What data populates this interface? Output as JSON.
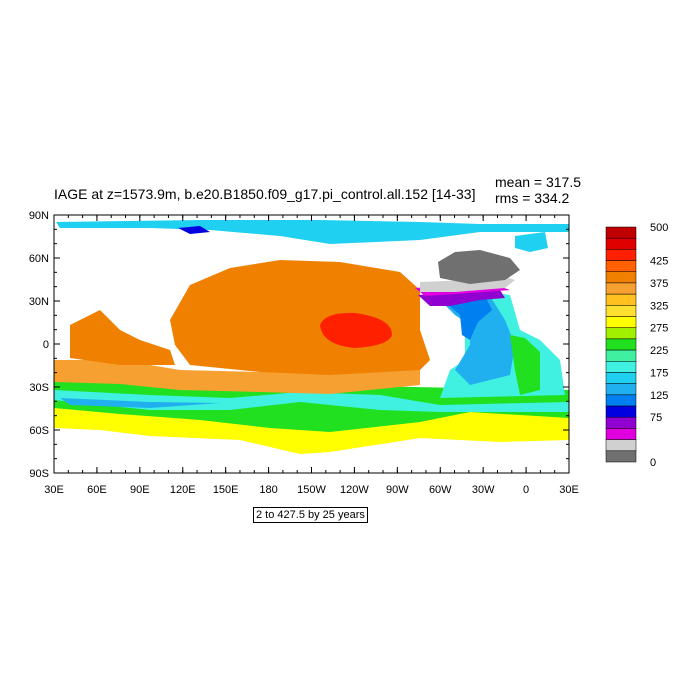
{
  "title": "IAGE at z=1573.9m, b.e20.B1850.f09_g17.pi_control.all.152 [14-33]",
  "stats": {
    "mean": "mean = 317.5",
    "rms": "rms = 334.2"
  },
  "note": "2 to 427.5 by 25 years",
  "axes": {
    "x_ticks": [
      "30E",
      "60E",
      "90E",
      "120E",
      "150E",
      "180",
      "150W",
      "120W",
      "90W",
      "60W",
      "30W",
      "0",
      "30E"
    ],
    "y_ticks": [
      "90N",
      "60N",
      "30N",
      "0",
      "30S",
      "60S",
      "90S"
    ]
  },
  "colorbar": {
    "labels": [
      "500",
      "425",
      "375",
      "325",
      "275",
      "225",
      "175",
      "125",
      "75",
      "0"
    ],
    "colors": [
      "#c00000",
      "#e00000",
      "#ff2000",
      "#ff6000",
      "#f08000",
      "#f5a030",
      "#ffc020",
      "#ffe030",
      "#ffff00",
      "#a0f000",
      "#20e020",
      "#40f0a0",
      "#40f0e0",
      "#20d0f0",
      "#20b0f0",
      "#0080f0",
      "#0000e0",
      "#9000d0",
      "#e000e0",
      "#d0d0d0",
      "#707070"
    ]
  },
  "map_colors": {
    "land": "#ffffff",
    "north_pacific_core": "#ff2000",
    "pacific": "#f08000",
    "pacific_south": "#f5a030",
    "southern_yellow": "#ffff00",
    "southern_green": "#20e020",
    "southern_cyan": "#40f0e0",
    "southern_blue": "#20b0f0",
    "arctic": "#20d0f0",
    "atlantic_cyan": "#40f0e0",
    "atlantic_blue": "#20b0f0",
    "atlantic_deep": "#0080f0",
    "labrador_purple": "#9000d0",
    "labrador_magenta": "#e000e0",
    "nordic_gray": "#707070",
    "nordic_light": "#d0d0d0"
  }
}
